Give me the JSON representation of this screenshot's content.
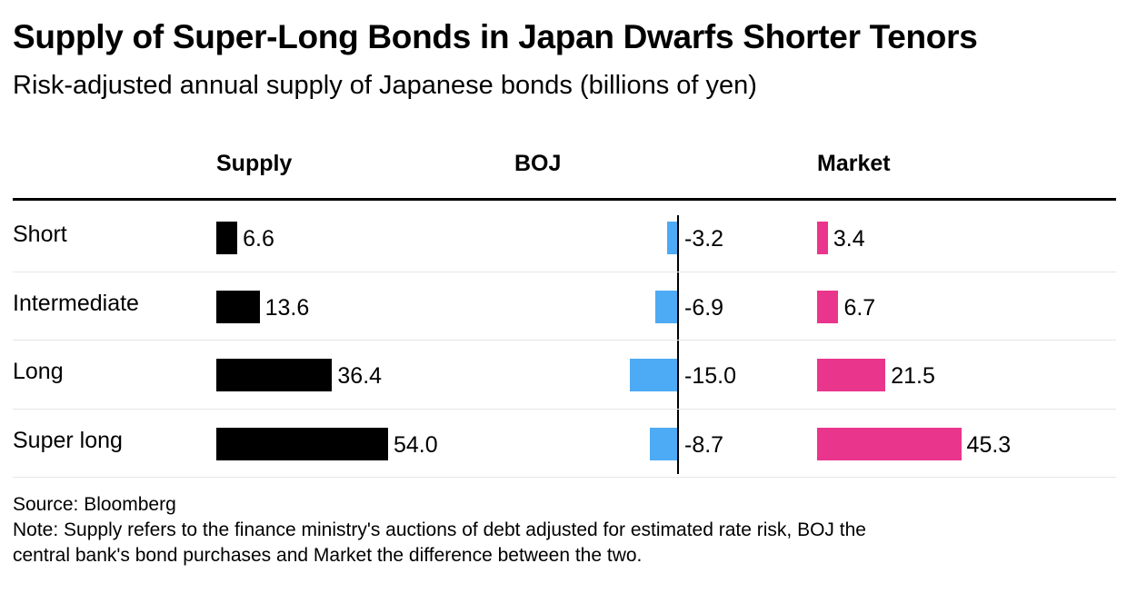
{
  "title": "Supply of Super-Long Bonds in Japan Dwarfs Shorter Tenors",
  "subtitle": "Risk-adjusted annual supply of Japanese bonds (billions of yen)",
  "source": "Source: Bloomberg",
  "note_line1": "Note: Supply refers to the finance ministry's auctions of debt adjusted for estimated rate risk, BOJ the",
  "note_line2": "central bank's bond purchases and Market the difference between the two.",
  "chart_data": {
    "type": "table",
    "title": "Supply of Super-Long Bonds in Japan Dwarfs Shorter Tenors",
    "subtitle": "Risk-adjusted annual supply of Japanese bonds (billions of yen)",
    "categories": [
      "Short",
      "Intermediate",
      "Long",
      "Super long"
    ],
    "series": [
      {
        "name": "Supply",
        "values": [
          6.6,
          13.6,
          36.4,
          54.0
        ],
        "labels": [
          "6.6",
          "13.6",
          "36.4",
          "54.0"
        ],
        "color": "#000000"
      },
      {
        "name": "BOJ",
        "values": [
          -3.2,
          -6.9,
          -15.0,
          -8.7
        ],
        "labels": [
          "-3.2",
          "-6.9",
          "-15.0",
          "-8.7"
        ],
        "color": "#4daaf5"
      },
      {
        "name": "Market",
        "values": [
          3.4,
          6.7,
          21.5,
          45.3
        ],
        "labels": [
          "3.4",
          "6.7",
          "21.5",
          "45.3"
        ],
        "color": "#ea358d"
      }
    ]
  }
}
